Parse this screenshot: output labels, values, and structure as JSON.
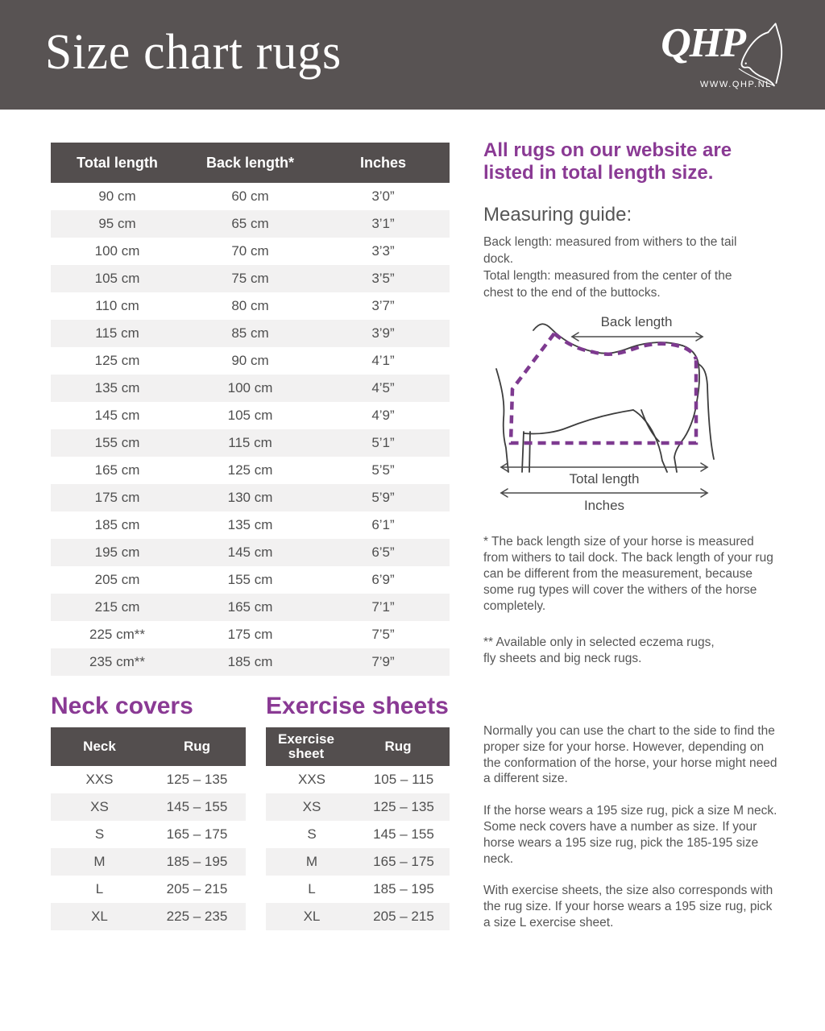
{
  "header": {
    "title": "Size chart rugs",
    "logo_text": "QHP",
    "logo_url": "WWW.QHP.NL"
  },
  "main_table": {
    "columns": [
      "Total length",
      "Back length*",
      "Inches"
    ],
    "rows": [
      [
        "90 cm",
        "60 cm",
        "3’0”"
      ],
      [
        "95 cm",
        "65 cm",
        "3’1”"
      ],
      [
        "100 cm",
        "70 cm",
        "3’3”"
      ],
      [
        "105 cm",
        "75 cm",
        "3’5”"
      ],
      [
        "110 cm",
        "80 cm",
        "3’7”"
      ],
      [
        "115 cm",
        "85 cm",
        "3’9”"
      ],
      [
        "125 cm",
        "90 cm",
        "4’1”"
      ],
      [
        "135 cm",
        "100 cm",
        "4’5”"
      ],
      [
        "145 cm",
        "105 cm",
        "4’9”"
      ],
      [
        "155 cm",
        "115 cm",
        "5’1”"
      ],
      [
        "165 cm",
        "125 cm",
        "5’5”"
      ],
      [
        "175 cm",
        "130 cm",
        "5’9”"
      ],
      [
        "185 cm",
        "135 cm",
        "6’1”"
      ],
      [
        "195 cm",
        "145 cm",
        "6’5”"
      ],
      [
        "205 cm",
        "155 cm",
        "6’9”"
      ],
      [
        "215 cm",
        "165 cm",
        "7’1”"
      ],
      [
        "225 cm**",
        "175 cm",
        "7’5”"
      ],
      [
        "235 cm**",
        "185 cm",
        "7’9”"
      ]
    ]
  },
  "sidebar": {
    "intro_heading": "All rugs on our website are listed in total length size.",
    "measuring_heading": "Measuring guide:",
    "measuring_lines": [
      "Back length: measured from withers to the tail dock.",
      "Total length: measured from the center of the chest to the end of the buttocks."
    ],
    "diagram": {
      "back_length": "Back length",
      "total_length": "Total length",
      "inches": "Inches"
    },
    "footnote_1": "* The back length size of your horse is measured from withers to tail dock. The back length of your rug can be different from the measurement, because some rug types will cover the withers of the horse completely.",
    "footnote_2": "** Available only in selected eczema rugs,\nfly sheets and big neck rugs."
  },
  "neck_covers": {
    "heading": "Neck covers",
    "columns": [
      "Neck",
      "Rug"
    ],
    "rows": [
      [
        "XXS",
        "125 – 135"
      ],
      [
        "XS",
        "145 – 155"
      ],
      [
        "S",
        "165 – 175"
      ],
      [
        "M",
        "185 – 195"
      ],
      [
        "L",
        "205 – 215"
      ],
      [
        "XL",
        "225 – 235"
      ]
    ]
  },
  "exercise_sheets": {
    "heading": "Exercise sheets",
    "columns": [
      "Exercise sheet",
      "Rug"
    ],
    "rows": [
      [
        "XXS",
        "105 – 115"
      ],
      [
        "XS",
        "125 – 135"
      ],
      [
        "S",
        "145 – 155"
      ],
      [
        "M",
        "165 – 175"
      ],
      [
        "L",
        "185 – 195"
      ],
      [
        "XL",
        "205 – 215"
      ]
    ]
  },
  "notes": {
    "paragraphs": [
      "Normally you can use the chart to the side to find the proper size for your horse.  However, depending on the conformation of the horse, your horse might need a different size.",
      "If the horse wears a 195 size rug, pick a size M neck. Some neck covers have a number as size. If your horse wears a 195 size rug, pick the 185-195 size neck.",
      "With exercise sheets, the size also corresponds with the rug size. If your horse wears a 195 size rug, pick a size L exercise sheet."
    ]
  },
  "colors": {
    "banner": "#585353",
    "table_header": "#534e4e",
    "row_alt": "#f2f1f1",
    "accent_purple": "#8a3a94",
    "rug_dash_purple": "#7e3a90",
    "text": "#4f4f4f"
  }
}
